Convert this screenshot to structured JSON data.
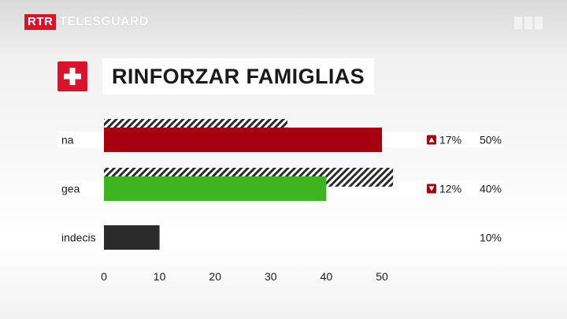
{
  "header": {
    "logo_badge": "RTR",
    "logo_name": "TELESGUARD",
    "watermark_icon": "srg-watermark-icon"
  },
  "title": {
    "flag_icon": "swiss-flag-icon",
    "text": "RINFORZAR FAMIGLIAS"
  },
  "chart_data": {
    "type": "bar",
    "orientation": "horizontal",
    "categories": [
      "na",
      "gea",
      "indecis"
    ],
    "series": [
      {
        "values": [
          33,
          52,
          null
        ],
        "pattern": "hatched",
        "color": "#2a2a2a"
      },
      {
        "values": [
          50,
          40,
          10
        ],
        "colors": [
          "#a5000f",
          "#3cb521",
          "#2b2b2b"
        ]
      }
    ],
    "change_labels": [
      {
        "direction": "up",
        "text": "17%"
      },
      {
        "direction": "down",
        "text": "12%"
      },
      null
    ],
    "value_labels": [
      "50%",
      "40%",
      "10%"
    ],
    "x_ticks": [
      0,
      10,
      20,
      30,
      40,
      50
    ],
    "xlim": [
      0,
      50
    ],
    "grid": false,
    "legend": "none"
  }
}
